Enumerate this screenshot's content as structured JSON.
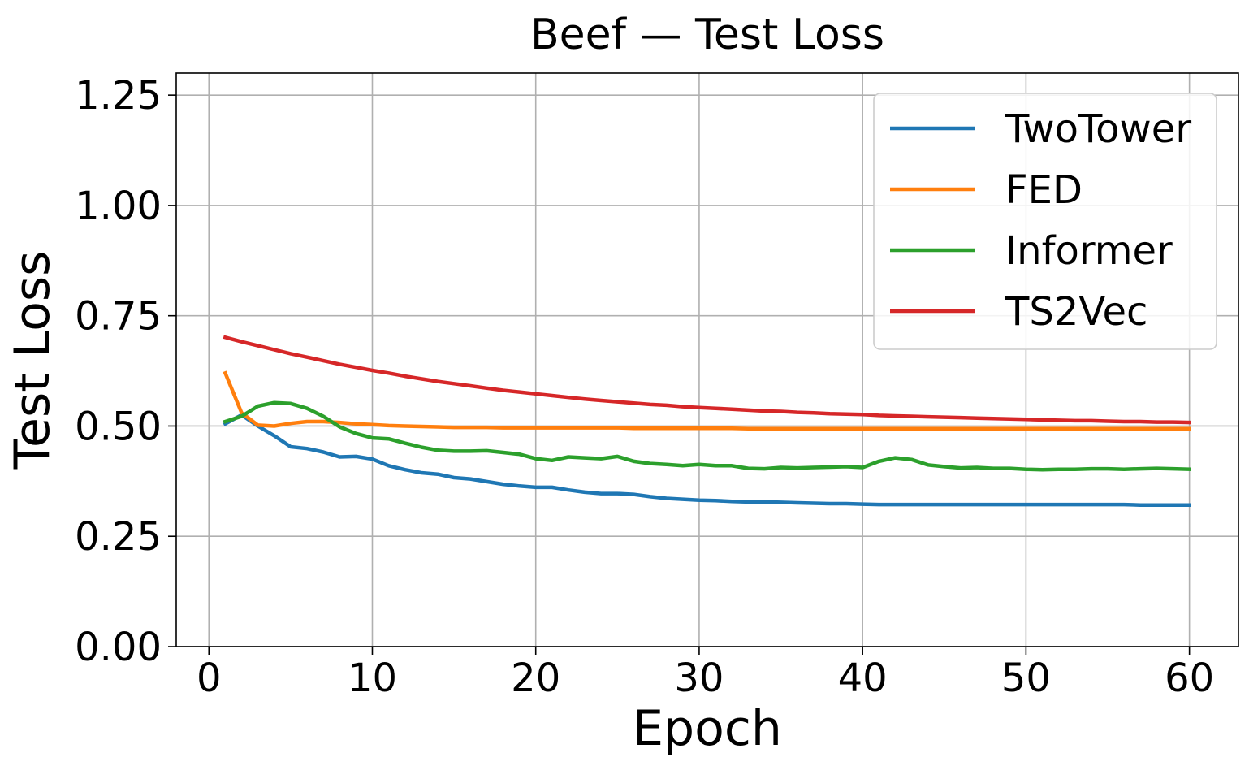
{
  "chart_data": {
    "type": "line",
    "title": "Beef — Test Loss",
    "xlabel": "Epoch",
    "ylabel": "Test Loss",
    "xlim": [
      -2,
      63
    ],
    "ylim": [
      0,
      1.3
    ],
    "xticks": [
      0,
      10,
      20,
      30,
      40,
      50,
      60
    ],
    "yticks": [
      0.0,
      0.25,
      0.5,
      0.75,
      1.0,
      1.25
    ],
    "xtick_labels": [
      "0",
      "10",
      "20",
      "30",
      "40",
      "50",
      "60"
    ],
    "ytick_labels": [
      "0.00",
      "0.25",
      "0.50",
      "0.75",
      "1.00",
      "1.25"
    ],
    "grid": true,
    "legend_position": "top-right",
    "x": [
      1,
      2,
      3,
      4,
      5,
      6,
      7,
      8,
      9,
      10,
      11,
      12,
      13,
      14,
      15,
      16,
      17,
      18,
      19,
      20,
      21,
      22,
      23,
      24,
      25,
      26,
      27,
      28,
      29,
      30,
      31,
      32,
      33,
      34,
      35,
      36,
      37,
      38,
      39,
      40,
      41,
      42,
      43,
      44,
      45,
      46,
      47,
      48,
      49,
      50,
      51,
      52,
      53,
      54,
      55,
      56,
      57,
      58,
      59,
      60
    ],
    "series": [
      {
        "name": "TwoTower",
        "color": "#1f77b4",
        "values": [
          0.505,
          0.525,
          0.5,
          0.478,
          0.453,
          0.449,
          0.441,
          0.43,
          0.431,
          0.425,
          0.41,
          0.401,
          0.394,
          0.391,
          0.383,
          0.38,
          0.374,
          0.368,
          0.364,
          0.361,
          0.361,
          0.355,
          0.35,
          0.347,
          0.347,
          0.345,
          0.34,
          0.336,
          0.334,
          0.332,
          0.331,
          0.329,
          0.328,
          0.328,
          0.327,
          0.326,
          0.325,
          0.324,
          0.324,
          0.323,
          0.322,
          0.322,
          0.322,
          0.322,
          0.322,
          0.322,
          0.322,
          0.322,
          0.322,
          0.322,
          0.322,
          0.322,
          0.322,
          0.322,
          0.322,
          0.322,
          0.321,
          0.321,
          0.321,
          0.321
        ]
      },
      {
        "name": "FED",
        "color": "#ff7f0e",
        "values": [
          0.62,
          0.53,
          0.502,
          0.5,
          0.506,
          0.51,
          0.51,
          0.508,
          0.505,
          0.503,
          0.501,
          0.5,
          0.499,
          0.498,
          0.497,
          0.497,
          0.497,
          0.496,
          0.496,
          0.496,
          0.496,
          0.496,
          0.496,
          0.496,
          0.496,
          0.495,
          0.495,
          0.495,
          0.495,
          0.495,
          0.495,
          0.495,
          0.494,
          0.494,
          0.494,
          0.494,
          0.494,
          0.494,
          0.494,
          0.494,
          0.494,
          0.494,
          0.494,
          0.494,
          0.494,
          0.494,
          0.494,
          0.494,
          0.494,
          0.494,
          0.494,
          0.494,
          0.494,
          0.494,
          0.494,
          0.494,
          0.494,
          0.494,
          0.494,
          0.494
        ]
      },
      {
        "name": "Informer",
        "color": "#2ca02c",
        "values": [
          0.51,
          0.522,
          0.545,
          0.553,
          0.551,
          0.54,
          0.522,
          0.498,
          0.483,
          0.473,
          0.471,
          0.461,
          0.452,
          0.445,
          0.443,
          0.443,
          0.444,
          0.44,
          0.436,
          0.426,
          0.422,
          0.43,
          0.428,
          0.426,
          0.431,
          0.42,
          0.415,
          0.413,
          0.41,
          0.413,
          0.41,
          0.41,
          0.404,
          0.403,
          0.406,
          0.405,
          0.406,
          0.407,
          0.408,
          0.406,
          0.42,
          0.428,
          0.424,
          0.412,
          0.408,
          0.405,
          0.406,
          0.404,
          0.404,
          0.402,
          0.401,
          0.402,
          0.402,
          0.403,
          0.403,
          0.402,
          0.403,
          0.404,
          0.403,
          0.402
        ]
      },
      {
        "name": "TS2Vec",
        "color": "#d62728",
        "values": [
          0.701,
          0.691,
          0.682,
          0.673,
          0.664,
          0.656,
          0.648,
          0.64,
          0.633,
          0.626,
          0.62,
          0.613,
          0.607,
          0.601,
          0.596,
          0.591,
          0.586,
          0.581,
          0.577,
          0.573,
          0.569,
          0.565,
          0.561,
          0.558,
          0.555,
          0.552,
          0.549,
          0.547,
          0.544,
          0.542,
          0.54,
          0.538,
          0.536,
          0.534,
          0.533,
          0.531,
          0.53,
          0.528,
          0.527,
          0.526,
          0.524,
          0.523,
          0.522,
          0.521,
          0.52,
          0.519,
          0.518,
          0.517,
          0.516,
          0.515,
          0.514,
          0.513,
          0.512,
          0.512,
          0.511,
          0.51,
          0.51,
          0.509,
          0.509,
          0.508
        ]
      }
    ]
  }
}
